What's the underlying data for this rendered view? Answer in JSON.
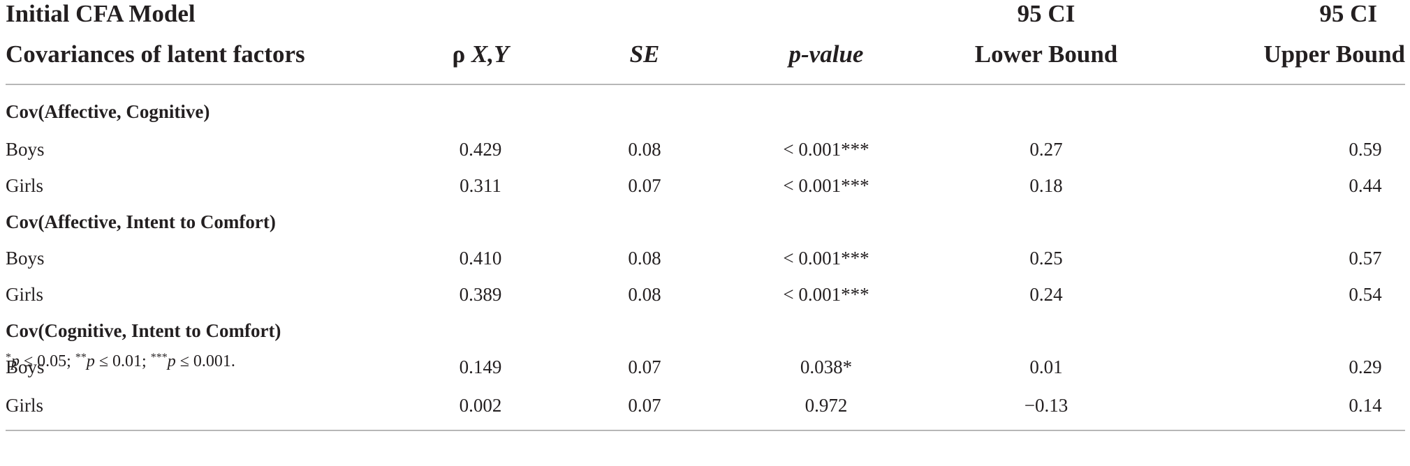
{
  "table": {
    "header_row1": {
      "model": "Initial CFA Model",
      "ci_lower_top": "95 CI",
      "ci_upper_top": "95 CI"
    },
    "header_row2": {
      "covariances": "Covariances of latent factors",
      "rho_prefix": "ρ ",
      "rho_vars": "X,Y",
      "se": "SE",
      "pvalue": "p-value",
      "ci_lower_bottom": "Lower Bound",
      "ci_upper_bottom": "Upper Bound"
    },
    "groups": [
      {
        "title": "Cov(Affective, Cognitive)",
        "rows": [
          {
            "label": "Boys",
            "rho": "0.429",
            "se": "0.08",
            "p": "< 0.001***",
            "lower": "0.27",
            "upper": "0.59"
          },
          {
            "label": "Girls",
            "rho": "0.311",
            "se": "0.07",
            "p": "< 0.001***",
            "lower": "0.18",
            "upper": "0.44"
          }
        ]
      },
      {
        "title": "Cov(Affective, Intent to Comfort)",
        "rows": [
          {
            "label": "Boys",
            "rho": "0.410",
            "se": "0.08",
            "p": "< 0.001***",
            "lower": "0.25",
            "upper": "0.57"
          },
          {
            "label": "Girls",
            "rho": "0.389",
            "se": "0.08",
            "p": "< 0.001***",
            "lower": "0.24",
            "upper": "0.54"
          }
        ]
      },
      {
        "title": "Cov(Cognitive, Intent to Comfort)",
        "rows": [
          {
            "label": "Boys",
            "rho": "0.149",
            "se": "0.07",
            "p": "0.038*",
            "lower": "0.01",
            "upper": "0.29"
          },
          {
            "label": "Girls",
            "rho": "0.002",
            "se": "0.07",
            "p": "0.972",
            "lower": "−0.13",
            "upper": "0.14"
          }
        ]
      }
    ]
  },
  "footnote": {
    "s1": "*",
    "p1": "p",
    "t1": " ≤ 0.05; ",
    "s2": "**",
    "p2": "p",
    "t2": " ≤ 0.01; ",
    "s3": "***",
    "p3": "p",
    "t3": " ≤ 0.001."
  }
}
